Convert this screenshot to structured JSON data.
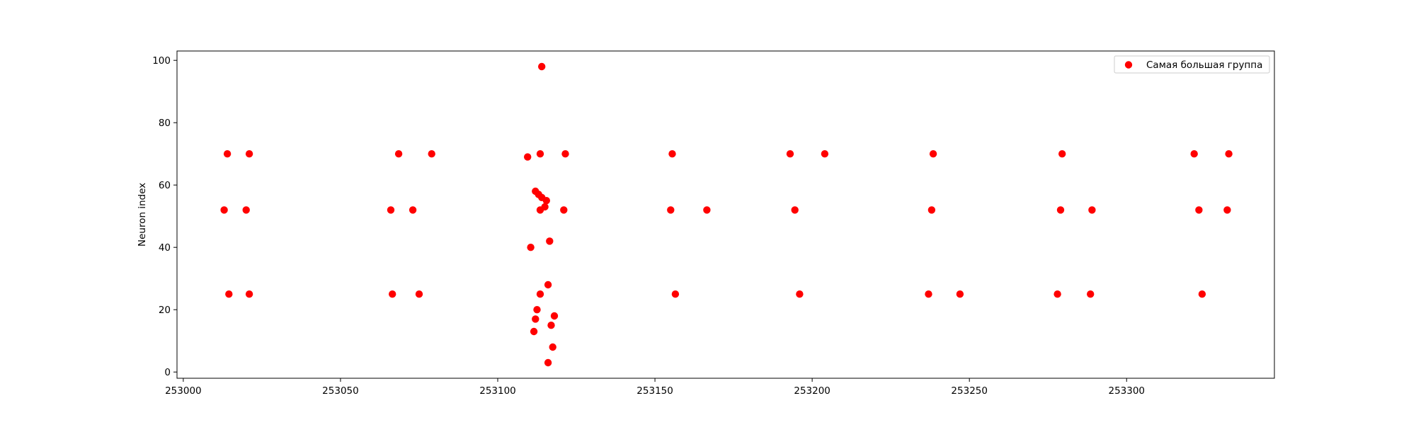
{
  "chart_data": {
    "type": "scatter",
    "title": "",
    "xlabel": "",
    "ylabel": "Neuron index",
    "xlim": [
      252998,
      253347
    ],
    "ylim": [
      -2,
      103
    ],
    "xticks": [
      253000,
      253050,
      253100,
      253150,
      253200,
      253250,
      253300
    ],
    "yticks": [
      0,
      20,
      40,
      60,
      80,
      100
    ],
    "grid": false,
    "legend_position": "top-right",
    "marker_color": "#ff0000",
    "series": [
      {
        "name": "Самая большая группа",
        "points": [
          [
            253013,
            52
          ],
          [
            253014,
            70
          ],
          [
            253014.5,
            25
          ],
          [
            253020,
            52
          ],
          [
            253021,
            70
          ],
          [
            253021,
            25
          ],
          [
            253066,
            52
          ],
          [
            253066.5,
            25
          ],
          [
            253068.5,
            70
          ],
          [
            253073,
            52
          ],
          [
            253075,
            25
          ],
          [
            253079,
            70
          ],
          [
            253109.5,
            69
          ],
          [
            253110.5,
            40
          ],
          [
            253111.5,
            13
          ],
          [
            253112,
            58
          ],
          [
            253112,
            17
          ],
          [
            253112.5,
            20
          ],
          [
            253113,
            57
          ],
          [
            253113.5,
            70
          ],
          [
            253113.5,
            52
          ],
          [
            253113.5,
            25
          ],
          [
            253114,
            98
          ],
          [
            253114,
            56
          ],
          [
            253115,
            53
          ],
          [
            253115.5,
            55
          ],
          [
            253116,
            28
          ],
          [
            253116,
            3
          ],
          [
            253116.5,
            42
          ],
          [
            253117,
            15
          ],
          [
            253117.5,
            8
          ],
          [
            253118,
            18
          ],
          [
            253121,
            52
          ],
          [
            253121.5,
            70
          ],
          [
            253155,
            52
          ],
          [
            253155.5,
            70
          ],
          [
            253156.5,
            25
          ],
          [
            253166.5,
            52
          ],
          [
            253193,
            70
          ],
          [
            253194.5,
            52
          ],
          [
            253196,
            25
          ],
          [
            253204,
            70
          ],
          [
            253237,
            25
          ],
          [
            253238,
            52
          ],
          [
            253238.5,
            70
          ],
          [
            253247,
            25
          ],
          [
            253278,
            25
          ],
          [
            253279,
            52
          ],
          [
            253279.5,
            70
          ],
          [
            253288.5,
            25
          ],
          [
            253289,
            52
          ],
          [
            253321.5,
            70
          ],
          [
            253323,
            52
          ],
          [
            253324,
            25
          ],
          [
            253332,
            52
          ],
          [
            253332.5,
            70
          ]
        ]
      }
    ]
  }
}
